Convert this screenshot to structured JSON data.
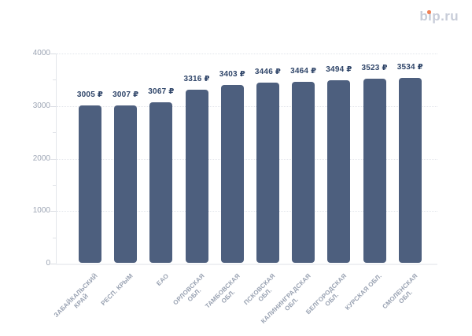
{
  "header": {
    "logo_text": "bip.ru",
    "logo_color": "#c7ccd8",
    "logo_dot_color": "#f08055"
  },
  "chart_data": {
    "type": "bar",
    "title": "",
    "xlabel": "",
    "ylabel": "",
    "categories": [
      "ЗАБАЙКАЛЬСКИЙ КРАЙ",
      "РЕСП. КРЫМ",
      "ЕАО",
      "ОРЛОВСКАЯ ОБЛ.",
      "ТАМБОВСКАЯ ОБЛ.",
      "ПСКОВСКАЯ ОБЛ.",
      "КАЛИНИНГРАДСКАЯ ОБЛ.",
      "БЕЛГОРОДСКАЯ ОБЛ.",
      "КУРСКАЯ ОБЛ.",
      "СМОЛЕНСКАЯ ОБЛ."
    ],
    "category_lines": [
      [
        "ЗАБАЙКАЛЬСКИЙ",
        "КРАЙ"
      ],
      [
        "РЕСП. КРЫМ"
      ],
      [
        "ЕАО"
      ],
      [
        "ОРЛОВСКАЯ",
        "ОБЛ."
      ],
      [
        "ТАМБОВСКАЯ",
        "ОБЛ."
      ],
      [
        "ПСКОВСКАЯ",
        "ОБЛ."
      ],
      [
        "КАЛИНИНГРАДСКАЯ",
        "ОБЛ."
      ],
      [
        "БЕЛГОРОДСКАЯ",
        "ОБЛ."
      ],
      [
        "КУРСКАЯ ОБЛ."
      ],
      [
        "СМОЛЕНСКАЯ",
        "ОБЛ."
      ]
    ],
    "values": [
      3005,
      3007,
      3067,
      3316,
      3403,
      3446,
      3464,
      3494,
      3523,
      3534
    ],
    "value_labels": [
      "3005 ₽",
      "3007 ₽",
      "3067 ₽",
      "3316 ₽",
      "3403 ₽",
      "3446 ₽",
      "3464 ₽",
      "3494 ₽",
      "3523 ₽",
      "3534 ₽"
    ],
    "value_suffix": " ₽",
    "ylim": [
      0,
      4000
    ],
    "yticks": [
      0,
      1000,
      2000,
      3000,
      4000
    ],
    "ytick_labels": [
      "0",
      "1000",
      "2000",
      "3000",
      "4000"
    ],
    "minor_yticks": [
      500,
      1500,
      2500,
      3500
    ],
    "grid": "horizontal-dotted",
    "legend": "none",
    "category_label_rotation_deg": -45,
    "bar_color": "#4d5f7e",
    "value_label_color": "#2f4569",
    "tick_label_color": "#9da5b4",
    "category_label_color": "#98a1b1"
  }
}
